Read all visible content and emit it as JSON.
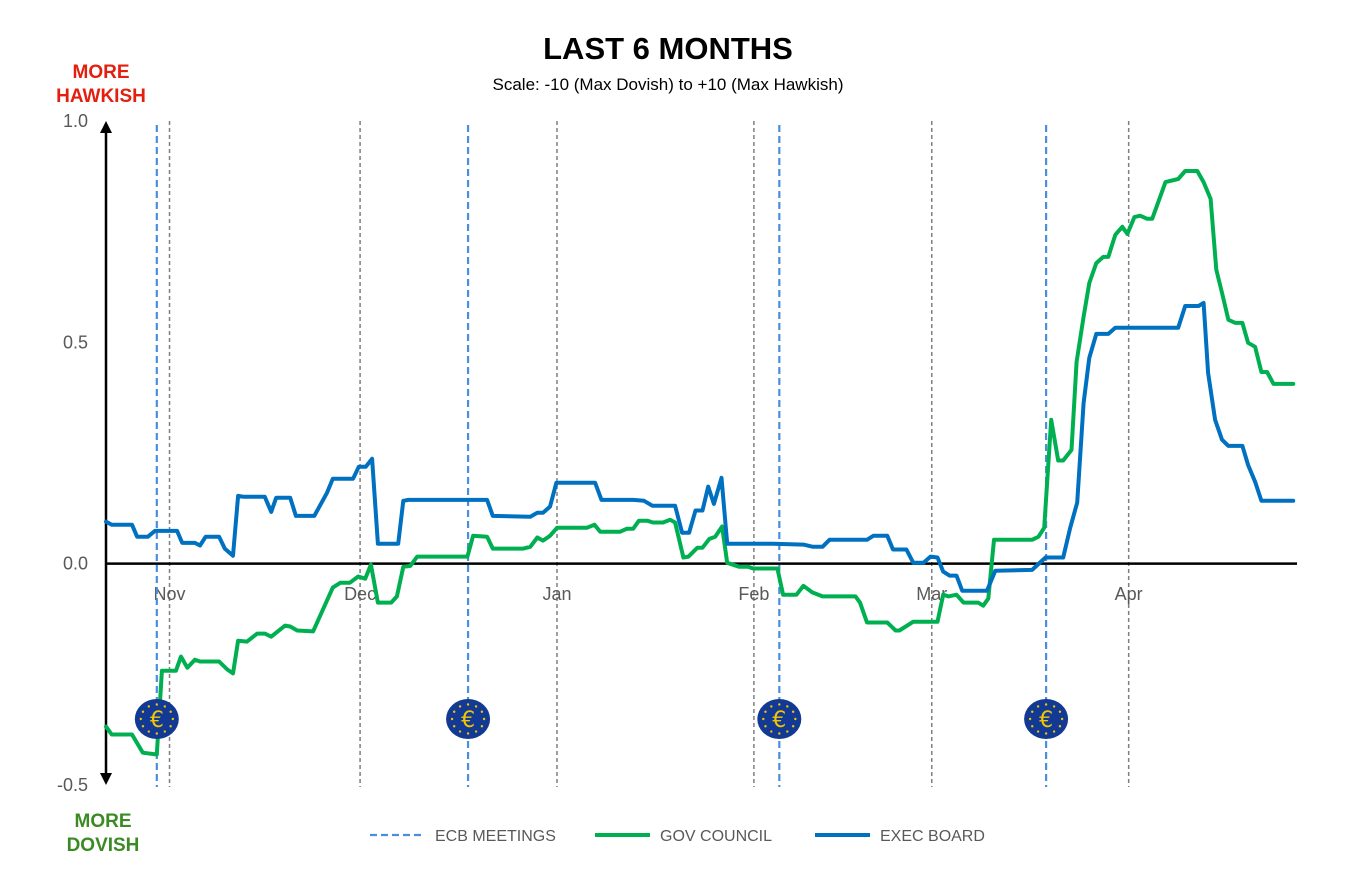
{
  "chart_data": {
    "type": "line",
    "title": "LAST 6 MONTHS",
    "subtitle": "Scale: -10 (Max Dovish)  to +10 (Max Hawkish)",
    "top_label": [
      "MORE",
      "HAWKISH"
    ],
    "bottom_label": [
      "MORE",
      "DOVISH"
    ],
    "x_unit": "days since start of window (start ≈ 22 Oct)",
    "xlim": [
      0,
      187.5
    ],
    "ylim": [
      -0.5,
      1.0
    ],
    "yticks": [
      {
        "v": 1.0,
        "label": "1.0"
      },
      {
        "v": 0.5,
        "label": "0.5"
      },
      {
        "v": 0.0,
        "label": "0.0"
      },
      {
        "v": -0.5,
        "label": "-0.5"
      }
    ],
    "xticks": [
      {
        "d": 10,
        "label": "Nov"
      },
      {
        "d": 40,
        "label": "Dec"
      },
      {
        "d": 71,
        "label": "Jan"
      },
      {
        "d": 102,
        "label": "Feb"
      },
      {
        "d": 130,
        "label": "Mar"
      },
      {
        "d": 161,
        "label": "Apr"
      }
    ],
    "ecb_meetings": [
      8,
      57,
      106,
      148
    ],
    "legend": [
      {
        "name": "ECB MEETINGS",
        "style": "dashed",
        "color": "#4a8fdb"
      },
      {
        "name": "GOV COUNCIL",
        "style": "solid",
        "color": "#00b050"
      },
      {
        "name": "EXEC BOARD",
        "style": "solid",
        "color": "#0070c0"
      }
    ],
    "legend_position": "bottom",
    "series": [
      {
        "name": "GOV COUNCIL",
        "color": "#00b050",
        "points": [
          [
            0,
            -0.368
          ],
          [
            0.9,
            -0.386
          ],
          [
            4.1,
            -0.386
          ],
          [
            5.8,
            -0.427
          ],
          [
            8.0,
            -0.431
          ],
          [
            8.8,
            -0.242
          ],
          [
            11.0,
            -0.242
          ],
          [
            11.8,
            -0.21
          ],
          [
            12.8,
            -0.235
          ],
          [
            14.0,
            -0.217
          ],
          [
            14.8,
            -0.221
          ],
          [
            17.8,
            -0.221
          ],
          [
            19.1,
            -0.239
          ],
          [
            20.0,
            -0.248
          ],
          [
            20.8,
            -0.174
          ],
          [
            22.2,
            -0.176
          ],
          [
            23.8,
            -0.158
          ],
          [
            25.0,
            -0.158
          ],
          [
            26.0,
            -0.165
          ],
          [
            28.2,
            -0.14
          ],
          [
            29.0,
            -0.142
          ],
          [
            30.1,
            -0.151
          ],
          [
            32.6,
            -0.153
          ],
          [
            35.7,
            -0.054
          ],
          [
            36.9,
            -0.043
          ],
          [
            38.4,
            -0.043
          ],
          [
            39.7,
            -0.029
          ],
          [
            40.8,
            -0.034
          ],
          [
            41.7,
            -0.002
          ],
          [
            42.8,
            -0.088
          ],
          [
            44.9,
            -0.088
          ],
          [
            45.8,
            -0.074
          ],
          [
            46.8,
            -0.007
          ],
          [
            47.9,
            -0.005
          ],
          [
            49.0,
            0.016
          ],
          [
            56.9,
            0.016
          ],
          [
            57.8,
            0.063
          ],
          [
            60.0,
            0.061
          ],
          [
            60.9,
            0.034
          ],
          [
            65.7,
            0.034
          ],
          [
            66.8,
            0.038
          ],
          [
            67.9,
            0.059
          ],
          [
            68.8,
            0.052
          ],
          [
            69.9,
            0.063
          ],
          [
            71.0,
            0.081
          ],
          [
            75.7,
            0.081
          ],
          [
            76.9,
            0.088
          ],
          [
            77.8,
            0.072
          ],
          [
            80.9,
            0.072
          ],
          [
            82.0,
            0.079
          ],
          [
            83.0,
            0.079
          ],
          [
            83.9,
            0.097
          ],
          [
            85.2,
            0.097
          ],
          [
            86.1,
            0.093
          ],
          [
            87.7,
            0.093
          ],
          [
            88.8,
            0.099
          ],
          [
            89.6,
            0.093
          ],
          [
            90.9,
            0.014
          ],
          [
            91.7,
            0.016
          ],
          [
            93.1,
            0.036
          ],
          [
            93.9,
            0.036
          ],
          [
            95.0,
            0.056
          ],
          [
            95.9,
            0.061
          ],
          [
            97.0,
            0.084
          ],
          [
            97.8,
            0.002
          ],
          [
            99.7,
            -0.007
          ],
          [
            101.1,
            -0.007
          ],
          [
            101.9,
            -0.011
          ],
          [
            105.7,
            -0.011
          ],
          [
            106.6,
            -0.07
          ],
          [
            108.7,
            -0.07
          ],
          [
            109.8,
            -0.05
          ],
          [
            111.2,
            -0.065
          ],
          [
            112.8,
            -0.074
          ],
          [
            118.0,
            -0.074
          ],
          [
            118.7,
            -0.088
          ],
          [
            119.8,
            -0.133
          ],
          [
            123.0,
            -0.133
          ],
          [
            124.3,
            -0.151
          ],
          [
            124.9,
            -0.151
          ],
          [
            127.1,
            -0.131
          ],
          [
            130.9,
            -0.131
          ],
          [
            131.8,
            -0.07
          ],
          [
            132.6,
            -0.074
          ],
          [
            133.9,
            -0.07
          ],
          [
            135.0,
            -0.088
          ],
          [
            137.3,
            -0.088
          ],
          [
            138.1,
            -0.095
          ],
          [
            138.9,
            -0.079
          ],
          [
            139.8,
            0.054
          ],
          [
            145.8,
            0.054
          ],
          [
            146.8,
            0.061
          ],
          [
            147.7,
            0.081
          ],
          [
            148.8,
            0.325
          ],
          [
            149.9,
            0.233
          ],
          [
            150.7,
            0.233
          ],
          [
            152.0,
            0.257
          ],
          [
            152.8,
            0.456
          ],
          [
            153.9,
            0.558
          ],
          [
            154.8,
            0.634
          ],
          [
            155.9,
            0.679
          ],
          [
            157.0,
            0.693
          ],
          [
            157.8,
            0.693
          ],
          [
            158.9,
            0.743
          ],
          [
            160.0,
            0.761
          ],
          [
            160.8,
            0.745
          ],
          [
            161.9,
            0.783
          ],
          [
            162.8,
            0.786
          ],
          [
            163.9,
            0.779
          ],
          [
            164.7,
            0.779
          ],
          [
            166.8,
            0.862
          ],
          [
            168.8,
            0.869
          ],
          [
            169.9,
            0.887
          ],
          [
            171.8,
            0.887
          ],
          [
            172.8,
            0.862
          ],
          [
            173.9,
            0.824
          ],
          [
            174.8,
            0.664
          ],
          [
            175.7,
            0.612
          ],
          [
            176.7,
            0.551
          ],
          [
            177.8,
            0.544
          ],
          [
            178.9,
            0.544
          ],
          [
            179.8,
            0.499
          ],
          [
            180.9,
            0.49
          ],
          [
            181.9,
            0.433
          ],
          [
            182.8,
            0.433
          ],
          [
            183.8,
            0.406
          ],
          [
            186.9,
            0.406
          ]
        ]
      },
      {
        "name": "EXEC BOARD",
        "color": "#0070c0",
        "points": [
          [
            0,
            0.095
          ],
          [
            0.9,
            0.088
          ],
          [
            4.1,
            0.088
          ],
          [
            4.9,
            0.061
          ],
          [
            6.6,
            0.061
          ],
          [
            7.7,
            0.074
          ],
          [
            11.2,
            0.074
          ],
          [
            12.0,
            0.047
          ],
          [
            14.0,
            0.047
          ],
          [
            14.8,
            0.041
          ],
          [
            15.7,
            0.061
          ],
          [
            17.8,
            0.061
          ],
          [
            18.7,
            0.034
          ],
          [
            20.0,
            0.018
          ],
          [
            20.8,
            0.153
          ],
          [
            21.7,
            0.151
          ],
          [
            25.0,
            0.151
          ],
          [
            26.0,
            0.117
          ],
          [
            26.8,
            0.149
          ],
          [
            29.0,
            0.149
          ],
          [
            29.9,
            0.108
          ],
          [
            32.8,
            0.108
          ],
          [
            34.8,
            0.16
          ],
          [
            35.7,
            0.192
          ],
          [
            38.9,
            0.192
          ],
          [
            39.8,
            0.219
          ],
          [
            40.9,
            0.219
          ],
          [
            41.9,
            0.237
          ],
          [
            42.8,
            0.045
          ],
          [
            46.0,
            0.045
          ],
          [
            46.8,
            0.142
          ],
          [
            47.6,
            0.144
          ],
          [
            60.0,
            0.144
          ],
          [
            60.9,
            0.108
          ],
          [
            66.8,
            0.106
          ],
          [
            67.9,
            0.115
          ],
          [
            68.8,
            0.115
          ],
          [
            69.9,
            0.129
          ],
          [
            70.9,
            0.183
          ],
          [
            77.0,
            0.183
          ],
          [
            78.0,
            0.144
          ],
          [
            83.0,
            0.144
          ],
          [
            84.7,
            0.142
          ],
          [
            86.0,
            0.131
          ],
          [
            89.6,
            0.131
          ],
          [
            90.7,
            0.07
          ],
          [
            91.8,
            0.07
          ],
          [
            92.8,
            0.12
          ],
          [
            93.9,
            0.12
          ],
          [
            94.8,
            0.174
          ],
          [
            95.7,
            0.135
          ],
          [
            96.9,
            0.194
          ],
          [
            97.8,
            0.045
          ],
          [
            105.0,
            0.045
          ],
          [
            109.8,
            0.043
          ],
          [
            111.3,
            0.038
          ],
          [
            112.8,
            0.038
          ],
          [
            113.9,
            0.054
          ],
          [
            119.8,
            0.054
          ],
          [
            120.8,
            0.063
          ],
          [
            123.0,
            0.063
          ],
          [
            123.9,
            0.032
          ],
          [
            126.0,
            0.032
          ],
          [
            127.1,
            0.002
          ],
          [
            128.7,
            0.002
          ],
          [
            129.8,
            0.016
          ],
          [
            130.9,
            0.014
          ],
          [
            131.8,
            -0.018
          ],
          [
            132.8,
            -0.027
          ],
          [
            133.9,
            -0.027
          ],
          [
            134.8,
            -0.061
          ],
          [
            138.7,
            -0.061
          ],
          [
            140.0,
            -0.016
          ],
          [
            145.8,
            -0.014
          ],
          [
            147.9,
            0.014
          ],
          [
            150.7,
            0.014
          ],
          [
            151.8,
            0.081
          ],
          [
            152.9,
            0.138
          ],
          [
            153.9,
            0.363
          ],
          [
            154.8,
            0.465
          ],
          [
            155.9,
            0.519
          ],
          [
            157.8,
            0.519
          ],
          [
            158.9,
            0.533
          ],
          [
            168.8,
            0.533
          ],
          [
            169.9,
            0.582
          ],
          [
            172.0,
            0.582
          ],
          [
            172.8,
            0.589
          ],
          [
            173.5,
            0.431
          ],
          [
            174.6,
            0.325
          ],
          [
            175.7,
            0.28
          ],
          [
            176.7,
            0.266
          ],
          [
            178.9,
            0.266
          ],
          [
            179.8,
            0.223
          ],
          [
            180.9,
            0.185
          ],
          [
            181.9,
            0.142
          ],
          [
            186.9,
            0.142
          ]
        ]
      }
    ]
  }
}
